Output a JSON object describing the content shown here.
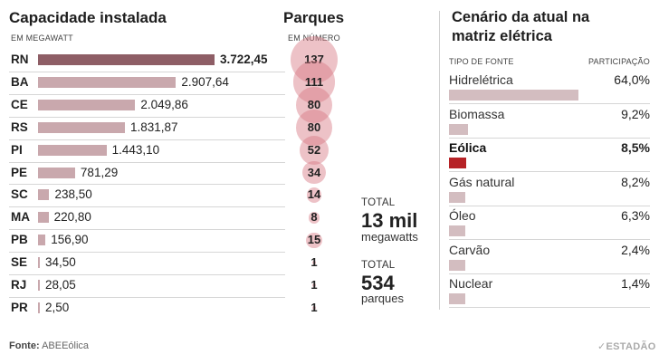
{
  "left": {
    "title": "Capacidade instalada",
    "subtitle": "EM MEGAWATT"
  },
  "middle": {
    "title": "Parques",
    "subtitle": "EM NÚMERO"
  },
  "totals": {
    "label1": "TOTAL",
    "value1": "13 mil",
    "unit1": "megawatts",
    "label2": "TOTAL",
    "value2": "534",
    "unit2": "parques"
  },
  "right": {
    "title_line1": "Cenário da atual na",
    "title_line2": "matriz elétrica",
    "col_source": "TIPO DE FONTE",
    "col_share": "PARTICIPAÇÃO"
  },
  "footer": {
    "source_label": "Fonte:",
    "source_name": "ABEEólica",
    "brand": "ESTADÃO"
  },
  "colors": {
    "bar_highlight": "#8e5e66",
    "bar_default": "#c9a8ad",
    "bubble": "#d77882",
    "share_bar": "#d3bdc0",
    "share_highlight": "#b62226"
  },
  "chart_data": [
    {
      "type": "bar",
      "title": "Capacidade instalada",
      "subtitle": "EM MEGAWATT",
      "categories": [
        "RN",
        "BA",
        "CE",
        "RS",
        "PI",
        "PE",
        "SC",
        "MA",
        "PB",
        "SE",
        "RJ",
        "PR"
      ],
      "values": [
        3722.45,
        2907.64,
        2049.86,
        1831.87,
        1443.1,
        781.29,
        238.5,
        220.8,
        156.9,
        34.5,
        28.05,
        2.5
      ],
      "value_labels": [
        "3.722,45",
        "2.907,64",
        "2.049,86",
        "1.831,87",
        "1.443,10",
        "781,29",
        "238,50",
        "220,80",
        "156,90",
        "34,50",
        "28,05",
        "2,50"
      ],
      "highlight": "RN"
    },
    {
      "type": "scatter",
      "title": "Parques",
      "subtitle": "EM NÚMERO",
      "categories": [
        "RN",
        "BA",
        "CE",
        "RS",
        "PI",
        "PE",
        "SC",
        "MA",
        "PB",
        "SE",
        "RJ",
        "PR"
      ],
      "values": [
        137,
        111,
        80,
        80,
        52,
        34,
        14,
        8,
        15,
        1,
        1,
        1
      ]
    },
    {
      "type": "bar",
      "title": "Cenário da atual na matriz elétrica",
      "categories": [
        "Hidrelétrica",
        "Biomassa",
        "Eólica",
        "Gás natural",
        "Óleo",
        "Carvão",
        "Nuclear"
      ],
      "values": [
        64.0,
        9.2,
        8.5,
        8.2,
        6.3,
        2.4,
        1.4
      ],
      "value_labels": [
        "64,0%",
        "9,2%",
        "8,5%",
        "8,2%",
        "6,3%",
        "2,4%",
        "1,4%"
      ],
      "highlight": "Eólica",
      "xlabel": "TIPO DE FONTE",
      "ylabel": "PARTICIPAÇÃO"
    }
  ]
}
